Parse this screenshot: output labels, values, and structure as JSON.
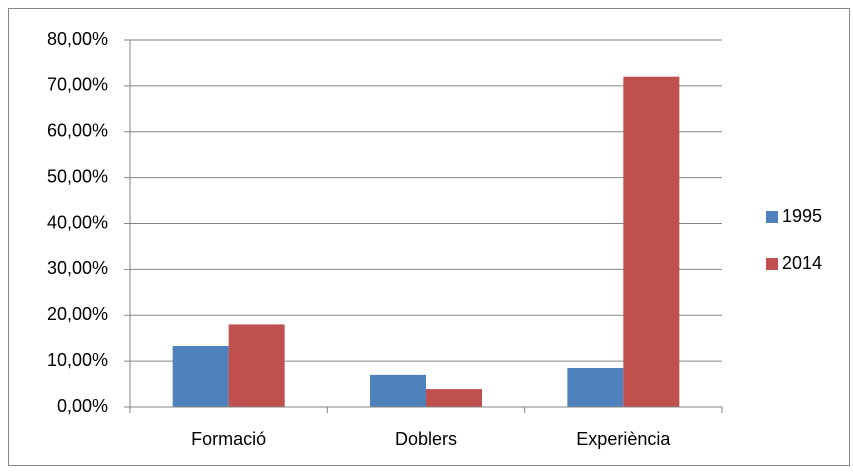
{
  "chart_data": {
    "type": "bar",
    "categories": [
      "Formació",
      "Doblers",
      "Experiència"
    ],
    "series": [
      {
        "name": "1995",
        "color": "#4f81bd",
        "values": [
          13.3,
          7.0,
          8.5
        ]
      },
      {
        "name": "2014",
        "color": "#c0504d",
        "values": [
          18,
          3.9,
          72
        ]
      }
    ],
    "ylim": [
      0,
      80
    ],
    "yticks": [
      {
        "value": 0,
        "label": "0,00%"
      },
      {
        "value": 10,
        "label": "10,00%"
      },
      {
        "value": 20,
        "label": "20,00%"
      },
      {
        "value": 30,
        "label": "30,00%"
      },
      {
        "value": 40,
        "label": "40,00%"
      },
      {
        "value": 50,
        "label": "50,00%"
      },
      {
        "value": 60,
        "label": "60,00%"
      },
      {
        "value": 70,
        "label": "70,00%"
      },
      {
        "value": 80,
        "label": "80,00%"
      }
    ],
    "grid": true,
    "legend": "right"
  }
}
